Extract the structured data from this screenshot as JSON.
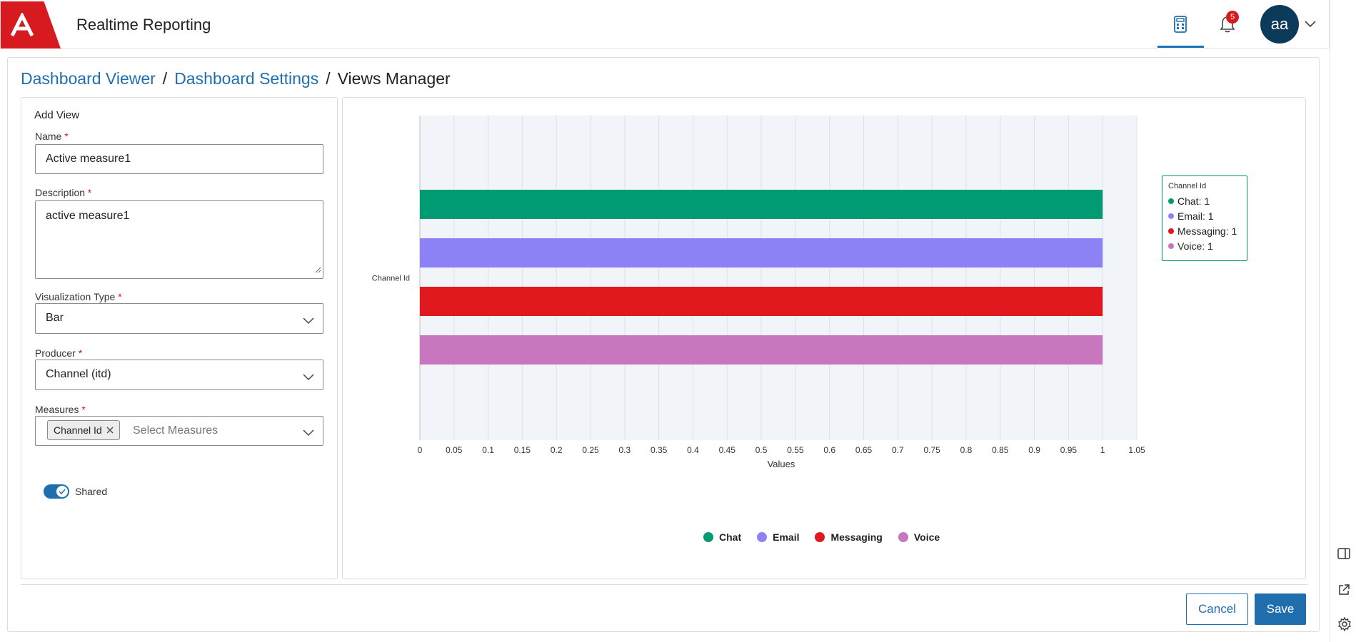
{
  "header": {
    "app_title": "Realtime Reporting",
    "notification_count": "5",
    "avatar_initials": "aa"
  },
  "breadcrumb": {
    "items": [
      "Dashboard Viewer",
      "Dashboard Settings"
    ],
    "separator": "/",
    "current": "Views Manager"
  },
  "form": {
    "title": "Add View",
    "required_mark": "*",
    "name": {
      "label": "Name",
      "value": "Active measure1"
    },
    "description": {
      "label": "Description",
      "value": "active measure1"
    },
    "visualization_type": {
      "label": "Visualization Type",
      "value": "Bar"
    },
    "producer": {
      "label": "Producer",
      "value": "Channel (itd)"
    },
    "measures": {
      "label": "Measures",
      "chip": "Channel Id",
      "placeholder": "Select Measures"
    },
    "shared": {
      "label": "Shared",
      "checked": true
    }
  },
  "chart_data": {
    "type": "bar",
    "orientation": "horizontal",
    "categories": [
      "Channel Id"
    ],
    "series": [
      {
        "name": "Chat",
        "values": [
          1
        ],
        "color": "#009b72"
      },
      {
        "name": "Email",
        "values": [
          1
        ],
        "color": "#8c82f6"
      },
      {
        "name": "Messaging",
        "values": [
          1
        ],
        "color": "#e0191f"
      },
      {
        "name": "Voice",
        "values": [
          1
        ],
        "color": "#c876bd"
      }
    ],
    "xlabel": "Values",
    "ylabel": "",
    "xlim": [
      0,
      1.05
    ],
    "xticks": [
      "0",
      "0.05",
      "0.1",
      "0.15",
      "0.2",
      "0.25",
      "0.3",
      "0.35",
      "0.4",
      "0.45",
      "0.5",
      "0.55",
      "0.6",
      "0.65",
      "0.7",
      "0.75",
      "0.8",
      "0.85",
      "0.9",
      "0.95",
      "1",
      "1.05"
    ],
    "grid": true,
    "legend": "bottom",
    "tooltip": {
      "title": "Channel Id",
      "rows": [
        "Chat: 1",
        "Email: 1",
        "Messaging: 1",
        "Voice: 1"
      ]
    }
  },
  "footer": {
    "cancel_label": "Cancel",
    "save_label": "Save"
  },
  "icons": {
    "logo": "company-logo-icon",
    "calculator": "calculator-icon",
    "bell": "bell-icon",
    "chevron": "chevron-down-icon",
    "rail": [
      "panel-icon",
      "external-link-icon",
      "settings-icon"
    ]
  }
}
